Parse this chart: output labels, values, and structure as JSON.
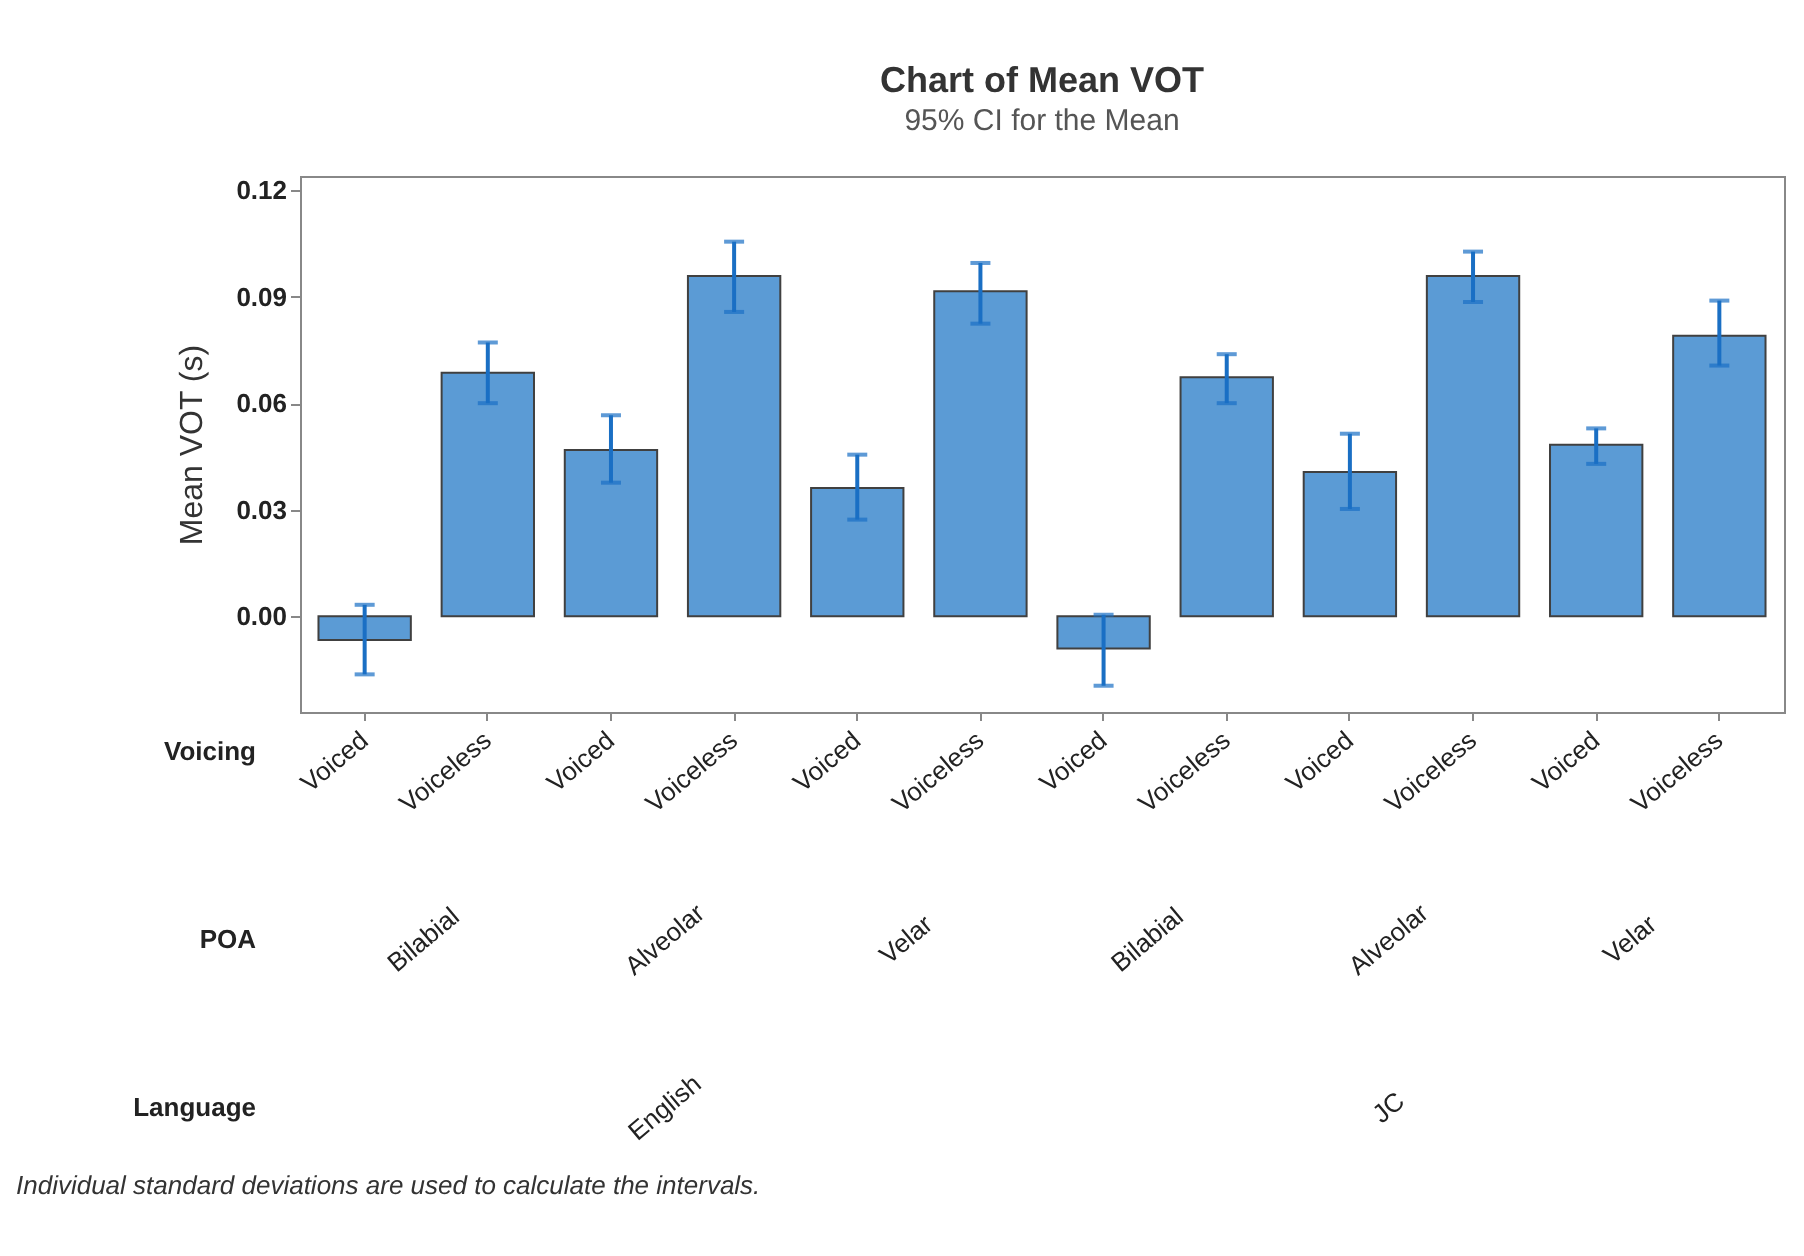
{
  "chart_data": {
    "type": "bar",
    "title": "Chart of Mean VOT",
    "subtitle": "95% CI for the Mean",
    "ylabel": "Mean VOT (s)",
    "categories": [
      "Voiced",
      "Voiceless",
      "Voiced",
      "Voiceless",
      "Voiced",
      "Voiceless",
      "Voiced",
      "Voiceless",
      "Voiced",
      "Voiceless",
      "Voiced",
      "Voiceless"
    ],
    "values": [
      -0.0067,
      0.0686,
      0.0468,
      0.0958,
      0.0361,
      0.0915,
      -0.0091,
      0.0673,
      0.0406,
      0.0958,
      0.0483,
      0.079
    ],
    "errors": [
      [
        -0.0164,
        0.0032
      ],
      [
        0.06,
        0.0771
      ],
      [
        0.0376,
        0.0566
      ],
      [
        0.0857,
        0.1055
      ],
      [
        0.0272,
        0.0455
      ],
      [
        0.0824,
        0.0995
      ],
      [
        -0.0196,
        0.0004
      ],
      [
        0.06,
        0.0738
      ],
      [
        0.0302,
        0.0514
      ],
      [
        0.0885,
        0.1027
      ],
      [
        0.0429,
        0.0529
      ],
      [
        0.0706,
        0.0889
      ]
    ],
    "color": "#5b9bd5",
    "ylim": [
      -0.027,
      0.124
    ],
    "yticks": [
      {
        "value": 0,
        "label": "0.00"
      },
      0.03,
      0.06,
      0.09,
      0.12
    ],
    "grid": false,
    "annotations": [
      "Voicing",
      "POA",
      "Bilabial",
      "Alveolar",
      "Velar",
      "Bilabial",
      "Alveolar",
      "Velar",
      "Language",
      "English",
      "JC",
      "Individual standard deviations are used to calculate the intervals."
    ]
  }
}
